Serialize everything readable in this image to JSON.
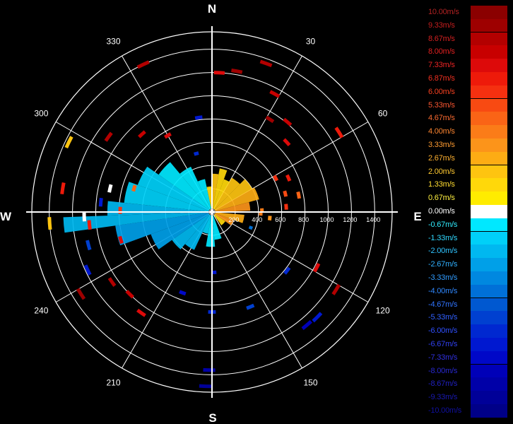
{
  "chart_data": {
    "type": "polar-radar",
    "title": "",
    "cardinals": [
      "N",
      "E",
      "S",
      "W"
    ],
    "bearing_labels": [
      "30",
      "60",
      "120",
      "150",
      "210",
      "240",
      "300",
      "330"
    ],
    "range_labels": [
      "200",
      "400",
      "600",
      "800",
      "1000",
      "1200",
      "1400"
    ],
    "range_max": 1550,
    "grid": true,
    "legend": {
      "placement": "right",
      "unit": "m/s",
      "entries": [
        {
          "label": "10.00m/s",
          "color": "#8b0000",
          "text_color": "#b22222"
        },
        {
          "label": "9.33m/s",
          "color": "#9e0000",
          "text_color": "#c41e1e"
        },
        {
          "label": "8.67m/s",
          "color": "#b30000",
          "text_color": "#d42020"
        },
        {
          "label": "8.00m/s",
          "color": "#c80000",
          "text_color": "#e02020"
        },
        {
          "label": "7.33m/s",
          "color": "#dd0a0a",
          "text_color": "#ec2424"
        },
        {
          "label": "6.87m/s",
          "color": "#ee1a0a",
          "text_color": "#f03020"
        },
        {
          "label": "6.00m/s",
          "color": "#f53010",
          "text_color": "#f54020"
        },
        {
          "label": "5.33m/s",
          "color": "#f84a12",
          "text_color": "#f85530"
        },
        {
          "label": "4.67m/s",
          "color": "#fa6416",
          "text_color": "#fa6a30"
        },
        {
          "label": "4.00m/s",
          "color": "#fb7c18",
          "text_color": "#fb8430"
        },
        {
          "label": "3.33m/s",
          "color": "#fc941a",
          "text_color": "#fc9a30"
        },
        {
          "label": "2.67m/s",
          "color": "#fdac14",
          "text_color": "#fdb030"
        },
        {
          "label": "2.00m/s",
          "color": "#fec410",
          "text_color": "#fec830"
        },
        {
          "label": "1.33m/s",
          "color": "#ffd80a",
          "text_color": "#ffdc30"
        },
        {
          "label": "0.67m/s",
          "color": "#ffec00",
          "text_color": "#fff040"
        },
        {
          "label": "0.00m/s",
          "color": "#ffffff",
          "text_color": "#ffffff"
        },
        {
          "label": "-0.67m/s",
          "color": "#00e8ff",
          "text_color": "#30ecff"
        },
        {
          "label": "-1.33m/s",
          "color": "#00d0f8",
          "text_color": "#30d8ff"
        },
        {
          "label": "-2.00m/s",
          "color": "#00b8f0",
          "text_color": "#30c4ff"
        },
        {
          "label": "-2.67m/s",
          "color": "#00a0e8",
          "text_color": "#30b0ff"
        },
        {
          "label": "-3.33m/s",
          "color": "#0088e0",
          "text_color": "#309cff"
        },
        {
          "label": "-4.00m/s",
          "color": "#0070d8",
          "text_color": "#3088ff"
        },
        {
          "label": "-4.67m/s",
          "color": "#0058d0",
          "text_color": "#3074ff"
        },
        {
          "label": "-5.33m/s",
          "color": "#0040d0",
          "text_color": "#3060ff"
        },
        {
          "label": "-6.00m/s",
          "color": "#0028d0",
          "text_color": "#3050ff"
        },
        {
          "label": "-6.67m/s",
          "color": "#0018d0",
          "text_color": "#3040f0"
        },
        {
          "label": "-7.33m/s",
          "color": "#0008c8",
          "text_color": "#3030e0"
        },
        {
          "label": "-8.00m/s",
          "color": "#0000b8",
          "text_color": "#2828d0"
        },
        {
          "label": "-8.67m/s",
          "color": "#0000a8",
          "text_color": "#2020c0"
        },
        {
          "label": "-9.33m/s",
          "color": "#000098",
          "text_color": "#1818b0"
        },
        {
          "label": "-10.00m/s",
          "color": "#000088",
          "text_color": "#1010a0"
        }
      ]
    },
    "sectors": [
      {
        "az_from": 0,
        "az_to": 10,
        "r_from": 30,
        "r_to": 330,
        "v": 1.8
      },
      {
        "az_from": 10,
        "az_to": 20,
        "r_from": 30,
        "r_to": 380,
        "v": 1.6
      },
      {
        "az_from": 20,
        "az_to": 30,
        "r_from": 30,
        "r_to": 300,
        "v": 1.4
      },
      {
        "az_from": 30,
        "az_to": 45,
        "r_from": 30,
        "r_to": 340,
        "v": 1.9
      },
      {
        "az_from": 45,
        "az_to": 60,
        "r_from": 30,
        "r_to": 400,
        "v": 2.3
      },
      {
        "az_from": 60,
        "az_to": 75,
        "r_from": 30,
        "r_to": 420,
        "v": 2.6
      },
      {
        "az_from": 75,
        "az_to": 88,
        "r_from": 30,
        "r_to": 330,
        "v": 3.1
      },
      {
        "az_from": 95,
        "az_to": 110,
        "r_from": 30,
        "r_to": 280,
        "v": 2.9
      },
      {
        "az_from": 110,
        "az_to": 125,
        "r_from": 30,
        "r_to": 200,
        "v": 3.4
      },
      {
        "az_from": 125,
        "az_to": 145,
        "r_from": 30,
        "r_to": 140,
        "v": 1.2
      },
      {
        "az_from": 160,
        "az_to": 175,
        "r_from": 30,
        "r_to": 240,
        "v": -0.8
      },
      {
        "az_from": 175,
        "az_to": 190,
        "r_from": 30,
        "r_to": 300,
        "v": -0.9
      },
      {
        "az_from": 190,
        "az_to": 205,
        "r_from": 30,
        "r_to": 190,
        "v": -1.2
      },
      {
        "az_from": 205,
        "az_to": 220,
        "r_from": 30,
        "r_to": 360,
        "v": -1.7
      },
      {
        "az_from": 220,
        "az_to": 235,
        "r_from": 30,
        "r_to": 420,
        "v": -2.1
      },
      {
        "az_from": 235,
        "az_to": 250,
        "r_from": 30,
        "r_to": 560,
        "v": -2.4
      },
      {
        "az_from": 250,
        "az_to": 262,
        "r_from": 30,
        "r_to": 840,
        "v": -2.6
      },
      {
        "az_from": 262,
        "az_to": 268,
        "r_from": 30,
        "r_to": 1280,
        "v": -2.2
      },
      {
        "az_from": 268,
        "az_to": 276,
        "r_from": 30,
        "r_to": 900,
        "v": -1.9
      },
      {
        "az_from": 276,
        "az_to": 290,
        "r_from": 30,
        "r_to": 760,
        "v": -1.6
      },
      {
        "az_from": 290,
        "az_to": 305,
        "r_from": 30,
        "r_to": 680,
        "v": -1.3
      },
      {
        "az_from": 305,
        "az_to": 320,
        "r_from": 30,
        "r_to": 560,
        "v": -0.9
      },
      {
        "az_from": 320,
        "az_to": 335,
        "r_from": 30,
        "r_to": 430,
        "v": -0.7
      },
      {
        "az_from": 335,
        "az_to": 348,
        "r_from": 30,
        "r_to": 290,
        "v": -0.7
      },
      {
        "az_from": 348,
        "az_to": 360,
        "r_from": 30,
        "r_to": 220,
        "v": 1.4
      }
    ],
    "gates": [
      {
        "az": 335,
        "r": 1400,
        "v": 8.6
      },
      {
        "az": 10,
        "r": 1230,
        "v": 9.3
      },
      {
        "az": 20,
        "r": 1360,
        "v": 8.7
      },
      {
        "az": 3,
        "r": 1200,
        "v": 7.3
      },
      {
        "az": 28,
        "r": 1150,
        "v": 8.0
      },
      {
        "az": 32,
        "r": 940,
        "v": 9.0
      },
      {
        "az": 40,
        "r": 1010,
        "v": 8.0
      },
      {
        "az": 47,
        "r": 880,
        "v": 7.3
      },
      {
        "az": 58,
        "r": 1290,
        "v": 6.9
      },
      {
        "az": 62,
        "r": 620,
        "v": 6.0
      },
      {
        "az": 66,
        "r": 720,
        "v": 6.9
      },
      {
        "az": 76,
        "r": 650,
        "v": 5.3
      },
      {
        "az": 79,
        "r": 760,
        "v": 4.7
      },
      {
        "az": 86,
        "r": 640,
        "v": 6.0
      },
      {
        "az": 92,
        "r": 420,
        "v": 4.0
      },
      {
        "az": 96,
        "r": 500,
        "v": 3.3
      },
      {
        "az": 112,
        "r": 360,
        "v": -4.0
      },
      {
        "az": 118,
        "r": 1020,
        "v": 7.3
      },
      {
        "az": 122,
        "r": 1260,
        "v": 8.7
      },
      {
        "az": 128,
        "r": 820,
        "v": -6.0
      },
      {
        "az": 135,
        "r": 1280,
        "v": -6.7
      },
      {
        "az": 140,
        "r": 1270,
        "v": -8.0
      },
      {
        "az": 158,
        "r": 880,
        "v": -5.3
      },
      {
        "az": 178,
        "r": 520,
        "v": -6.7
      },
      {
        "az": 180,
        "r": 860,
        "v": -6.0
      },
      {
        "az": 181,
        "r": 1360,
        "v": -8.7
      },
      {
        "az": 182,
        "r": 1500,
        "v": -9.3
      },
      {
        "az": 200,
        "r": 740,
        "v": -7.3
      },
      {
        "az": 215,
        "r": 1060,
        "v": 7.3
      },
      {
        "az": 225,
        "r": 1000,
        "v": 8.0
      },
      {
        "az": 235,
        "r": 1050,
        "v": 8.7
      },
      {
        "az": 238,
        "r": 1330,
        "v": 9.3
      },
      {
        "az": 245,
        "r": 1180,
        "v": -6.7
      },
      {
        "az": 253,
        "r": 820,
        "v": 7.3
      },
      {
        "az": 255,
        "r": 1100,
        "v": -5.3
      },
      {
        "az": 264,
        "r": 1060,
        "v": 6.9
      },
      {
        "az": 266,
        "r": 1400,
        "v": 2.0
      },
      {
        "az": 268,
        "r": 1100,
        "v": 0.0
      },
      {
        "az": 271,
        "r": 790,
        "v": 6.0
      },
      {
        "az": 275,
        "r": 960,
        "v": -6.7
      },
      {
        "az": 279,
        "r": 1300,
        "v": 6.9
      },
      {
        "az": 283,
        "r": 900,
        "v": 0.0
      },
      {
        "az": 287,
        "r": 700,
        "v": 4.7
      },
      {
        "az": 296,
        "r": 1370,
        "v": 2.0
      },
      {
        "az": 306,
        "r": 1100,
        "v": 8.6
      },
      {
        "az": 318,
        "r": 900,
        "v": 8.0
      },
      {
        "az": 330,
        "r": 760,
        "v": 7.3
      },
      {
        "az": 345,
        "r": 520,
        "v": -6.0
      },
      {
        "az": 352,
        "r": 820,
        "v": -6.7
      },
      {
        "az": 88,
        "r": 430,
        "v": 4.0
      }
    ]
  }
}
